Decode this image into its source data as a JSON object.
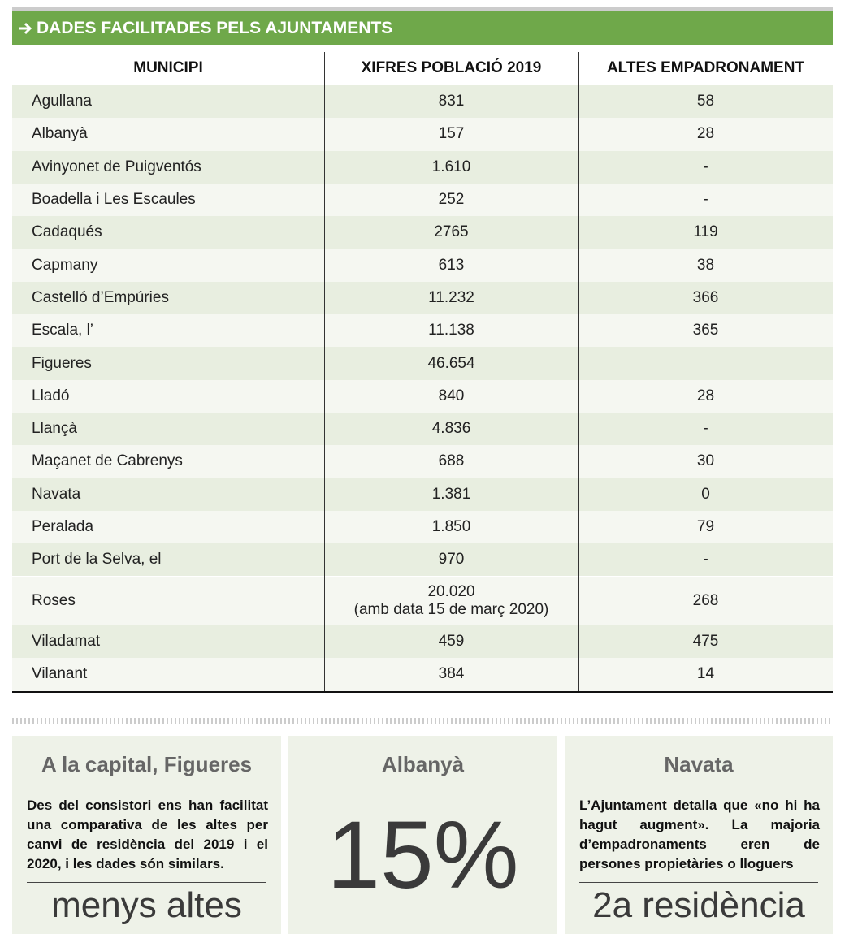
{
  "header": {
    "title": "DADES FACILITADES PELS AJUNTAMENTS"
  },
  "table": {
    "columns": [
      "MUNICIPI",
      "XIFRES POBLACIÓ 2019",
      "ALTES EMPADRONAMENT"
    ],
    "rows": [
      {
        "municipi": "Agullana",
        "poblacio": "831",
        "altes": "58"
      },
      {
        "municipi": "Albanyà",
        "poblacio": "157",
        "altes": "28"
      },
      {
        "municipi": "Avinyonet de Puigventós",
        "poblacio": "1.610",
        "altes": "-"
      },
      {
        "municipi": "Boadella i Les Escaules",
        "poblacio": "252",
        "altes": "-"
      },
      {
        "municipi": "Cadaqués",
        "poblacio": "2765",
        "altes": "119"
      },
      {
        "municipi": "Capmany",
        "poblacio": "613",
        "altes": "38"
      },
      {
        "municipi": "Castelló d’Empúries",
        "poblacio": "11.232",
        "altes": "366"
      },
      {
        "municipi": "Escala, l’",
        "poblacio": "11.138",
        "altes": "365"
      },
      {
        "municipi": "Figueres",
        "poblacio": "46.654",
        "altes": null
      },
      {
        "municipi": "Lladó",
        "poblacio": "840",
        "altes": "28"
      },
      {
        "municipi": "Llançà",
        "poblacio": "4.836",
        "altes": "-"
      },
      {
        "municipi": "Maçanet de Cabrenys",
        "poblacio": "688",
        "altes": "30"
      },
      {
        "municipi": "Navata",
        "poblacio": "1.381",
        "altes": "0"
      },
      {
        "municipi": "Peralada",
        "poblacio": "1.850",
        "altes": "79"
      },
      {
        "municipi": "Port de la Selva, el",
        "poblacio": "970",
        "altes": "-"
      },
      {
        "municipi": "Roses",
        "poblacio": "20.020",
        "nota": "(amb data 15 de març 2020)",
        "altes": "268"
      },
      {
        "municipi": "Viladamat",
        "poblacio": "459",
        "altes": "475"
      },
      {
        "municipi": "Vilanant",
        "poblacio": "384",
        "altes": "14"
      }
    ]
  },
  "boxes": [
    {
      "title": "A la capital, Figueres",
      "text": "Des del consistori ens han facilitat una comparativa de les altes per canvi de residència del 2019 i el 2020, i les dades són similars.",
      "big": "menys altes"
    },
    {
      "title": "Albanyà",
      "big": "15%"
    },
    {
      "title": "Navata",
      "text": "L’Ajuntament detalla que «no hi ha hagut augment». La majoria d’empadronaments eren de persones propietàries o lloguers",
      "big": "2a residència"
    }
  ]
}
